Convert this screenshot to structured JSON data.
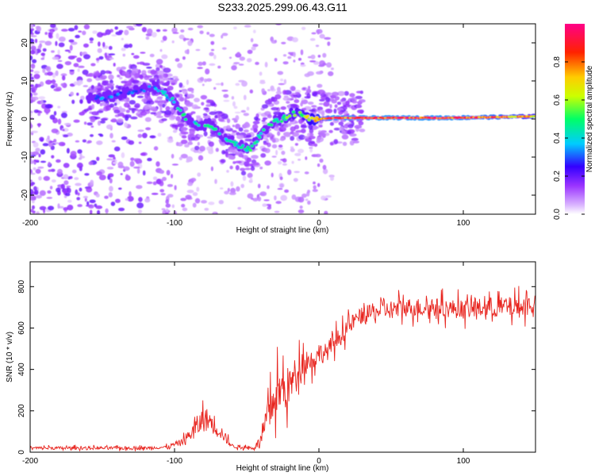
{
  "title": "S233.2025.299.06.43.G11",
  "chart_data": [
    {
      "type": "heatmap",
      "xlabel": "Height of straight line (km)",
      "ylabel": "Frequency (Hz)",
      "xlim": [
        -200,
        150
      ],
      "ylim": [
        -25,
        25
      ],
      "xticks": [
        -200,
        -100,
        0,
        100
      ],
      "xtick_labels": [
        "-200",
        "-100",
        "0",
        "100"
      ],
      "yticks": [
        -20,
        -10,
        0,
        10,
        20
      ],
      "ytick_labels": [
        "-20",
        "-10",
        "0",
        "10",
        "20"
      ],
      "colorbar": {
        "label": "Normalized spectral amplitude",
        "range": [
          0,
          1
        ],
        "ticks": [
          0,
          0.2,
          0.4,
          0.6,
          0.8
        ],
        "tick_labels": [
          "0.0",
          "0.2",
          "0.4",
          "0.6",
          "0.8"
        ],
        "colormap": [
          "#ffffff",
          "#c9a6ff",
          "#8000ff",
          "#0000ff",
          "#00ffff",
          "#00ff00",
          "#ffff00",
          "#ff0000",
          "#ff00ff"
        ]
      },
      "ridge": {
        "x": [
          -150,
          -130,
          -115,
          -108,
          -100,
          -92,
          -85,
          -75,
          -65,
          -55,
          -48,
          -40,
          -33,
          -25,
          -18,
          -12,
          -6,
          0,
          10,
          30,
          60,
          90,
          120,
          150
        ],
        "frequency": [
          5.5,
          7,
          8.5,
          7,
          4.5,
          0,
          -1.5,
          -1.5,
          -5,
          -7,
          -8,
          -4,
          -1,
          0,
          1.5,
          1.5,
          0,
          0,
          0.3,
          0.3,
          0.3,
          0.3,
          0.5,
          0.7
        ],
        "amplitude": [
          0.35,
          0.35,
          0.4,
          0.4,
          0.45,
          0.5,
          0.45,
          0.5,
          0.5,
          0.45,
          0.55,
          0.5,
          0.5,
          0.55,
          0.6,
          0.6,
          0.7,
          0.8,
          0.95,
          0.95,
          0.95,
          0.95,
          0.9,
          0.75
        ]
      },
      "colors": {
        "ridge_core": "#ff0000"
      }
    },
    {
      "type": "line",
      "xlabel": "Height of straight line (km)",
      "ylabel": "SNR (10 * v/v)",
      "xlim": [
        -200,
        150
      ],
      "ylim": [
        0,
        920
      ],
      "xticks": [
        -200,
        -100,
        0,
        100
      ],
      "xtick_labels": [
        "-200",
        "-100",
        "0",
        "100"
      ],
      "yticks": [
        0,
        200,
        400,
        600,
        800
      ],
      "ytick_labels": [
        "0",
        "200",
        "400",
        "600",
        "800"
      ],
      "series": [
        {
          "color": "#e8251f",
          "x": [
            -200,
            -180,
            -160,
            -140,
            -120,
            -105,
            -95,
            -90,
            -85,
            -80,
            -75,
            -70,
            -65,
            -60,
            -55,
            -45,
            -40,
            -35,
            -30,
            -25,
            -20,
            -15,
            -10,
            -5,
            0,
            5,
            10,
            15,
            20,
            25,
            30,
            40,
            50,
            60,
            80,
            100,
            120,
            140,
            150
          ],
          "values": [
            20,
            20,
            20,
            20,
            20,
            25,
            50,
            80,
            120,
            160,
            150,
            120,
            70,
            30,
            25,
            20,
            60,
            180,
            280,
            300,
            320,
            400,
            450,
            440,
            480,
            480,
            530,
            560,
            600,
            640,
            660,
            680,
            690,
            700,
            700,
            690,
            700,
            700,
            720
          ],
          "spread": [
            15,
            15,
            15,
            15,
            15,
            15,
            30,
            60,
            100,
            120,
            110,
            90,
            50,
            20,
            15,
            15,
            60,
            160,
            220,
            230,
            180,
            150,
            120,
            110,
            100,
            90,
            90,
            90,
            80,
            80,
            80,
            80,
            90,
            90,
            90,
            90,
            100,
            100,
            100
          ]
        }
      ]
    }
  ]
}
